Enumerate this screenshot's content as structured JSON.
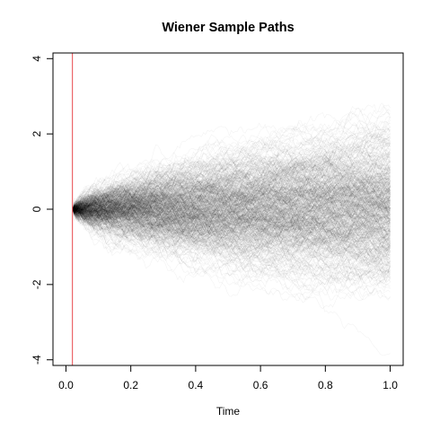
{
  "chart_data": {
    "type": "line",
    "title": "Wiener Sample Paths",
    "xlabel": "Time",
    "ylabel": "",
    "xlim": [
      -0.04,
      1.04
    ],
    "ylim": [
      -4.15,
      4.15
    ],
    "x_ticks": [
      0.0,
      0.2,
      0.4,
      0.6,
      0.8,
      1.0
    ],
    "x_tick_labels": [
      "0.0",
      "0.2",
      "0.4",
      "0.6",
      "0.8",
      "1.0"
    ],
    "y_ticks": [
      -4,
      -2,
      0,
      2,
      4
    ],
    "y_tick_labels": [
      "-4",
      "-2",
      "0",
      "2",
      "4"
    ],
    "vertical_line": {
      "x": 0.02,
      "color": "#e8474c"
    },
    "series": [
      {
        "x_start": 0.02,
        "x_end": 1.0,
        "y_start": 0,
        "process": "standard Wiener process",
        "color": "#000000"
      }
    ],
    "grid": false,
    "legend": "none"
  }
}
